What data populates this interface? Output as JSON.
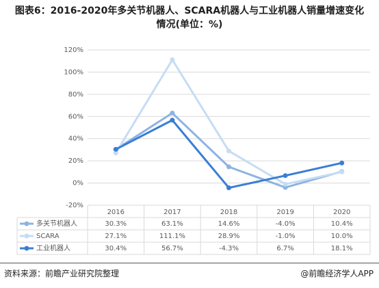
{
  "title": "图表6：2016-2020年多关节机器人、SCARA机器人与工业机器人销量增速变化情况(单位：%)",
  "chart_data": {
    "type": "line",
    "categories": [
      "2016",
      "2017",
      "2018",
      "2019",
      "2020"
    ],
    "ylim": [
      -20,
      120
    ],
    "yticks": [
      {
        "value": -20,
        "label": "-20%"
      },
      {
        "value": 0,
        "label": "0%"
      },
      {
        "value": 20,
        "label": "20%"
      },
      {
        "value": 40,
        "label": "40%"
      },
      {
        "value": 60,
        "label": "60%"
      },
      {
        "value": 80,
        "label": "80%"
      },
      {
        "value": 100,
        "label": "100%"
      },
      {
        "value": 120,
        "label": "120%"
      }
    ],
    "grid": true,
    "series": [
      {
        "name": "多关节机器人",
        "color": "#8db3e2",
        "values": [
          30.3,
          63.1,
          14.6,
          -4.0,
          10.4
        ],
        "value_labels": [
          "30.3%",
          "63.1%",
          "14.6%",
          "-4.0%",
          "10.4%"
        ]
      },
      {
        "name": "SCARA",
        "color": "#c6dcf4",
        "values": [
          27.1,
          111.1,
          28.9,
          -1.0,
          10.0
        ],
        "value_labels": [
          "27.1%",
          "111.1%",
          "28.9%",
          "-1.0%",
          "10.0%"
        ]
      },
      {
        "name": "工业机器人",
        "color": "#3a7ed4",
        "values": [
          30.4,
          56.7,
          -4.3,
          6.7,
          18.1
        ],
        "value_labels": [
          "30.4%",
          "56.7%",
          "-4.3%",
          "6.7%",
          "18.1%"
        ]
      }
    ]
  },
  "footer": {
    "source": "资料来源：前瞻产业研究院整理",
    "brand": "@前瞻经济学人APP"
  }
}
